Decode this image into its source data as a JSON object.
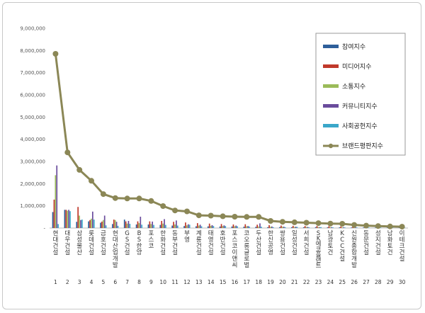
{
  "chart_data": {
    "type": "bar",
    "title": "",
    "xlabel": "",
    "ylabel": "",
    "ylim": [
      0,
      9000000
    ],
    "yticks": [
      0,
      1000000,
      2000000,
      3000000,
      4000000,
      5000000,
      6000000,
      7000000,
      8000000,
      9000000
    ],
    "ytick_labels": [
      "-",
      "1,000,000",
      "2,000,000",
      "3,000,000",
      "4,000,000",
      "5,000,000",
      "6,000,000",
      "7,000,000",
      "8,000,000",
      "9,000,000"
    ],
    "grid": false,
    "legend_position": "top-right",
    "categories": [
      "현대건설",
      "대우건설",
      "삼성물산",
      "롯데건설",
      "금호건설",
      "현대산업개발",
      "GS건설",
      "BS한양",
      "포스코",
      "한화건설",
      "동부건설",
      "부영",
      "계룡건설",
      "태영건설",
      "호반건설",
      "포스코이앤씨",
      "코오롱글로벌",
      "두산건설",
      "한신공영",
      "쌍용건설",
      "일성건설",
      "서희건설",
      "SK에코플랜트",
      "남광토건",
      "KCC건설",
      "신원종합개발",
      "동문건설",
      "성지건설",
      "남화토건",
      "이테크건설"
    ],
    "ranks": [
      "1",
      "2",
      "3",
      "4",
      "5",
      "6",
      "7",
      "8",
      "9",
      "10",
      "11",
      "12",
      "13",
      "14",
      "15",
      "16",
      "17",
      "18",
      "19",
      "20",
      "21",
      "22",
      "23",
      "24",
      "25",
      "26",
      "27",
      "28",
      "29",
      "30"
    ],
    "series": [
      {
        "name": "참여지수",
        "kind": "bar",
        "color": "#2e5f9a",
        "values": [
          720000,
          820000,
          280000,
          300000,
          240000,
          180000,
          380000,
          160000,
          160000,
          140000,
          110000,
          90000,
          80000,
          75000,
          70000,
          70000,
          60000,
          55000,
          40000,
          45000,
          40000,
          35000,
          40000,
          30000,
          30000,
          25000,
          25000,
          20000,
          20000,
          15000
        ]
      },
      {
        "name": "미디어지수",
        "kind": "bar",
        "color": "#c0392b",
        "values": [
          1280000,
          820000,
          950000,
          360000,
          290000,
          380000,
          300000,
          300000,
          300000,
          320000,
          280000,
          250000,
          220000,
          200000,
          180000,
          160000,
          170000,
          150000,
          130000,
          110000,
          100000,
          90000,
          90000,
          80000,
          70000,
          60000,
          55000,
          50000,
          45000,
          40000
        ]
      },
      {
        "name": "소통지수",
        "kind": "bar",
        "color": "#9bbb59",
        "values": [
          2380000,
          780000,
          560000,
          420000,
          360000,
          360000,
          200000,
          220000,
          180000,
          200000,
          160000,
          120000,
          110000,
          100000,
          90000,
          80000,
          80000,
          70000,
          60000,
          60000,
          50000,
          50000,
          45000,
          40000,
          35000,
          30000,
          25000,
          25000,
          20000,
          20000
        ]
      },
      {
        "name": "커뮤니티지수",
        "kind": "bar",
        "color": "#6a4c9c",
        "values": [
          2820000,
          820000,
          360000,
          740000,
          560000,
          280000,
          320000,
          510000,
          290000,
          400000,
          340000,
          170000,
          150000,
          130000,
          120000,
          110000,
          90000,
          210000,
          70000,
          60000,
          60000,
          50000,
          40000,
          40000,
          35000,
          30000,
          25000,
          25000,
          20000,
          20000
        ]
      },
      {
        "name": "사회공헌지수",
        "kind": "bar",
        "color": "#3aa7c9",
        "values": [
          180000,
          760000,
          380000,
          380000,
          120000,
          100000,
          190000,
          150000,
          140000,
          140000,
          110000,
          150000,
          80000,
          90000,
          90000,
          80000,
          70000,
          60000,
          40000,
          40000,
          50000,
          30000,
          40000,
          30000,
          25000,
          25000,
          20000,
          20000,
          15000,
          15000
        ]
      },
      {
        "name": "브랜드평판지수",
        "kind": "line",
        "color": "#8b8756",
        "values": [
          7850000,
          3410000,
          2620000,
          2130000,
          1530000,
          1350000,
          1330000,
          1330000,
          1220000,
          990000,
          790000,
          750000,
          570000,
          560000,
          530000,
          510000,
          500000,
          500000,
          320000,
          280000,
          260000,
          240000,
          220000,
          200000,
          190000,
          140000,
          110000,
          90000,
          70000,
          60000
        ]
      }
    ]
  }
}
